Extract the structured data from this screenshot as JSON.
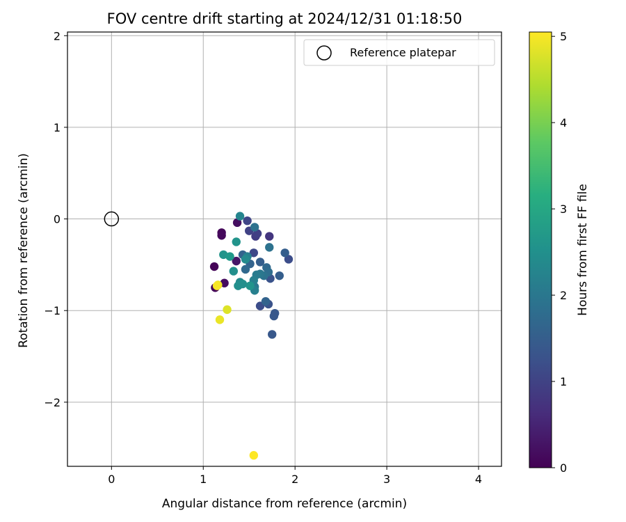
{
  "chart_data": {
    "type": "scatter",
    "title": "FOV centre drift starting at 2024/12/31 01:18:50",
    "xlabel": "Angular distance from reference (arcmin)",
    "ylabel": "Rotation from reference (arcmin)",
    "xlim": [
      -0.48,
      4.25
    ],
    "ylim": [
      -2.7,
      2.04
    ],
    "xticks": [
      0,
      1,
      2,
      3,
      4
    ],
    "yticks": [
      2,
      1,
      0,
      -1,
      -2
    ],
    "xtick_labels": [
      "0",
      "1",
      "2",
      "3",
      "4"
    ],
    "ytick_labels": [
      "2",
      "1",
      "0",
      "−1",
      "−2"
    ],
    "grid": true,
    "colormap": "viridis",
    "colorbar": {
      "label": "Hours from first FF file",
      "range": [
        0,
        5.05
      ],
      "ticks": [
        0,
        1,
        2,
        3,
        4,
        5
      ],
      "tick_labels": [
        "0",
        "1",
        "2",
        "3",
        "4",
        "5"
      ]
    },
    "legend": {
      "position": "top-right",
      "entries": [
        {
          "label": "Reference platepar",
          "marker": "open-circle"
        }
      ]
    },
    "reference_point": {
      "x": 0,
      "y": 0
    },
    "points": [
      {
        "x": 1.12,
        "y": -0.52,
        "c": 0.05
      },
      {
        "x": 1.13,
        "y": -0.75,
        "c": 0.08
      },
      {
        "x": 1.2,
        "y": -0.15,
        "c": 0.1
      },
      {
        "x": 1.2,
        "y": -0.18,
        "c": 0.12
      },
      {
        "x": 1.23,
        "y": -0.7,
        "c": 0.15
      },
      {
        "x": 1.37,
        "y": -0.04,
        "c": 0.2
      },
      {
        "x": 1.36,
        "y": -0.46,
        "c": 0.3
      },
      {
        "x": 1.72,
        "y": -0.19,
        "c": 0.8
      },
      {
        "x": 1.57,
        "y": -0.19,
        "c": 0.9
      },
      {
        "x": 1.59,
        "y": -0.16,
        "c": 0.95
      },
      {
        "x": 1.5,
        "y": -0.13,
        "c": 1.0
      },
      {
        "x": 1.48,
        "y": -0.02,
        "c": 1.05
      },
      {
        "x": 1.93,
        "y": -0.44,
        "c": 1.2
      },
      {
        "x": 1.55,
        "y": -0.37,
        "c": 1.1
      },
      {
        "x": 1.62,
        "y": -0.95,
        "c": 1.2
      },
      {
        "x": 1.71,
        "y": -0.93,
        "c": 1.3
      },
      {
        "x": 1.73,
        "y": -0.65,
        "c": 1.3
      },
      {
        "x": 1.78,
        "y": -1.03,
        "c": 1.4
      },
      {
        "x": 1.77,
        "y": -1.06,
        "c": 1.4
      },
      {
        "x": 1.75,
        "y": -1.26,
        "c": 1.4
      },
      {
        "x": 1.83,
        "y": -0.62,
        "c": 1.5
      },
      {
        "x": 1.89,
        "y": -0.37,
        "c": 1.5
      },
      {
        "x": 1.68,
        "y": -0.9,
        "c": 1.6
      },
      {
        "x": 1.62,
        "y": -0.47,
        "c": 1.5
      },
      {
        "x": 1.51,
        "y": -0.49,
        "c": 1.6
      },
      {
        "x": 1.46,
        "y": -0.55,
        "c": 1.7
      },
      {
        "x": 1.43,
        "y": -0.39,
        "c": 1.6
      },
      {
        "x": 1.69,
        "y": -0.53,
        "c": 1.7
      },
      {
        "x": 1.71,
        "y": -0.58,
        "c": 1.8
      },
      {
        "x": 1.56,
        "y": -0.09,
        "c": 1.9
      },
      {
        "x": 1.66,
        "y": -0.62,
        "c": 1.9
      },
      {
        "x": 1.56,
        "y": -0.74,
        "c": 2.0
      },
      {
        "x": 1.72,
        "y": -0.31,
        "c": 1.9
      },
      {
        "x": 1.62,
        "y": -0.6,
        "c": 2.0
      },
      {
        "x": 1.58,
        "y": -0.61,
        "c": 2.1
      },
      {
        "x": 1.55,
        "y": -0.67,
        "c": 2.2
      },
      {
        "x": 1.56,
        "y": -0.78,
        "c": 2.2
      },
      {
        "x": 1.48,
        "y": -0.41,
        "c": 2.2
      },
      {
        "x": 1.4,
        "y": 0.03,
        "c": 2.3
      },
      {
        "x": 1.4,
        "y": -0.69,
        "c": 2.4
      },
      {
        "x": 1.38,
        "y": -0.73,
        "c": 2.5
      },
      {
        "x": 1.43,
        "y": -0.71,
        "c": 2.5
      },
      {
        "x": 1.46,
        "y": -0.44,
        "c": 2.4
      },
      {
        "x": 1.36,
        "y": -0.25,
        "c": 2.6
      },
      {
        "x": 1.33,
        "y": -0.57,
        "c": 2.5
      },
      {
        "x": 1.22,
        "y": -0.39,
        "c": 2.6
      },
      {
        "x": 1.29,
        "y": -0.41,
        "c": 2.7
      },
      {
        "x": 1.51,
        "y": -0.73,
        "c": 2.6
      },
      {
        "x": 1.16,
        "y": -0.72,
        "c": 4.9
      },
      {
        "x": 1.15,
        "y": -0.73,
        "c": 5.0
      },
      {
        "x": 1.26,
        "y": -0.99,
        "c": 4.8
      },
      {
        "x": 1.18,
        "y": -1.1,
        "c": 4.9
      },
      {
        "x": 1.55,
        "y": -2.58,
        "c": 5.05
      }
    ]
  }
}
